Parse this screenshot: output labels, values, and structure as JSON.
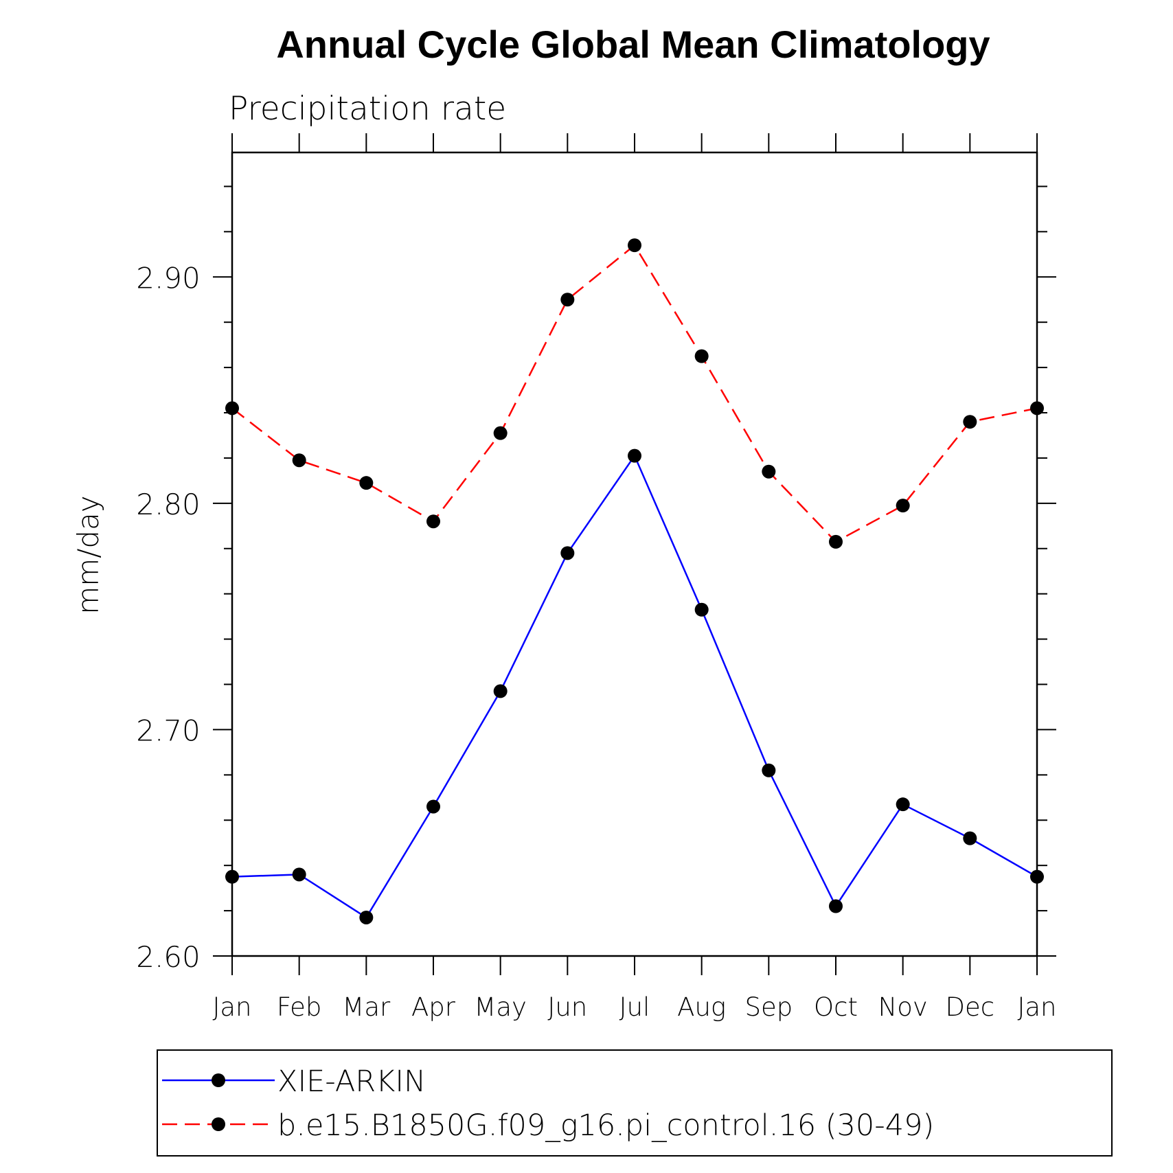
{
  "chart_data": {
    "type": "line",
    "title": "Annual Cycle Global Mean Climatology",
    "subtitle": "Precipitation rate",
    "xlabel": "",
    "ylabel": "mm/day",
    "categories": [
      "Jan",
      "Feb",
      "Mar",
      "Apr",
      "May",
      "Jun",
      "Jul",
      "Aug",
      "Sep",
      "Oct",
      "Nov",
      "Dec",
      "Jan"
    ],
    "ylim": [
      2.6,
      2.955
    ],
    "yticks_major": [
      2.6,
      2.7,
      2.8,
      2.9
    ],
    "yticks_major_labels": [
      "2.60",
      "2.70",
      "2.80",
      "2.90"
    ],
    "ytick_minor_step": 0.02,
    "grid": false,
    "legend_position": "bottom",
    "series": [
      {
        "name": "XIE-ARKIN",
        "color": "#0000ff",
        "dash": "solid",
        "marker": "filled-circle",
        "values": [
          2.635,
          2.636,
          2.617,
          2.666,
          2.717,
          2.778,
          2.821,
          2.753,
          2.682,
          2.622,
          2.667,
          2.652,
          2.635
        ]
      },
      {
        "name": "b.e15.B1850G.f09_g16.pi_control.16 (30-49)",
        "color": "#ff0000",
        "dash": "dashed",
        "marker": "filled-circle",
        "values": [
          2.842,
          2.819,
          2.809,
          2.792,
          2.831,
          2.89,
          2.914,
          2.865,
          2.814,
          2.783,
          2.799,
          2.836,
          2.842
        ]
      }
    ]
  }
}
